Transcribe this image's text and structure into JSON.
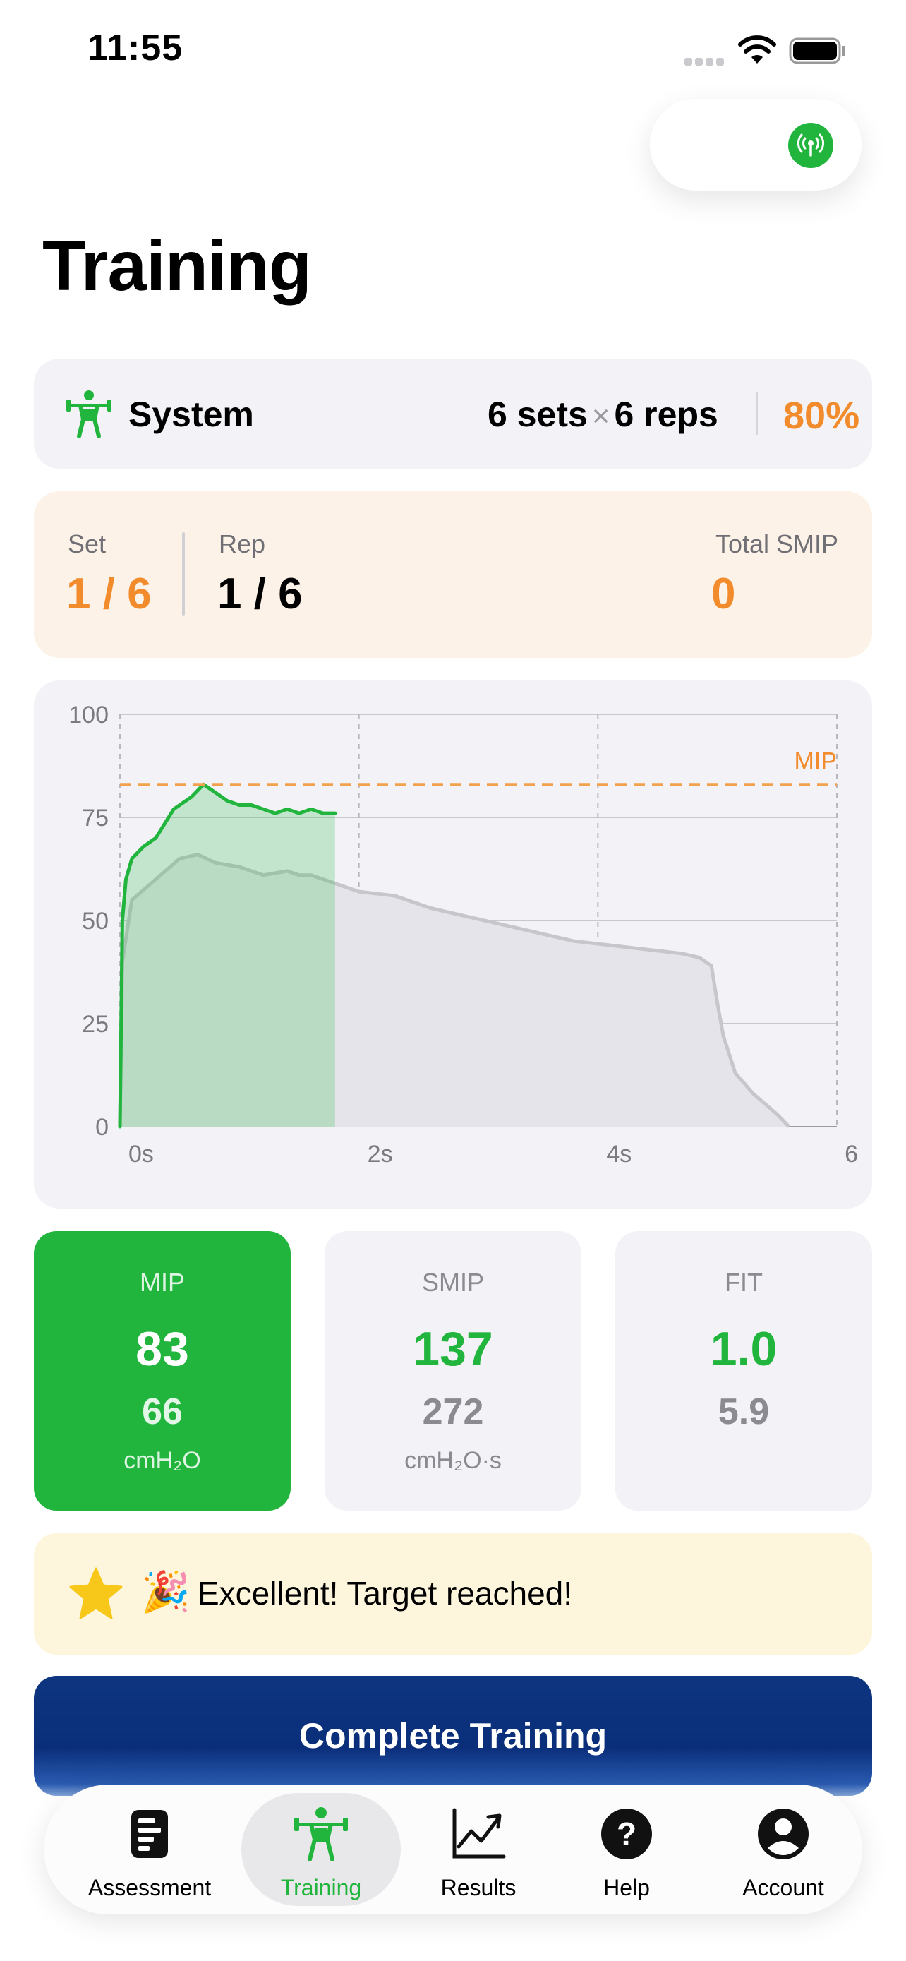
{
  "status_bar": {
    "time": "11:55"
  },
  "header": {
    "title": "Training"
  },
  "program": {
    "name": "System",
    "sets": "6 sets",
    "times": "×",
    "reps": "6 reps",
    "intensity": "80%"
  },
  "progress": {
    "set_label": "Set",
    "set_value": "1 / 6",
    "rep_label": "Rep",
    "rep_value": "1 / 6",
    "total_label": "Total SMIP",
    "total_value": "0"
  },
  "chart_data": {
    "type": "line",
    "ylim": [
      0,
      100
    ],
    "xlim": [
      0,
      6
    ],
    "y_ticks": [
      "0",
      "25",
      "50",
      "75",
      "100"
    ],
    "x_ticks": [
      "0s",
      "2s",
      "4s",
      "6"
    ],
    "target_label": "MIP",
    "target_value": 83,
    "series": [
      {
        "x": [
          0,
          0.02,
          0.1,
          0.3,
          0.5,
          0.65,
          0.8,
          1.0,
          1.2,
          1.4,
          1.5,
          1.6,
          1.7,
          1.8,
          2.0,
          2.3,
          2.6,
          2.9,
          3.2,
          3.5,
          3.8,
          4.1,
          4.4,
          4.7,
          4.85,
          4.95,
          5.0,
          5.05,
          5.15,
          5.3,
          5.5,
          5.6
        ],
        "y": [
          0,
          40,
          55,
          60,
          65,
          66,
          64,
          63,
          61,
          62,
          61,
          61,
          60,
          59,
          57,
          56,
          53,
          51,
          49,
          47,
          45,
          44,
          43,
          42,
          41,
          39,
          30,
          22,
          13,
          8,
          3,
          0
        ]
      },
      {
        "x": [
          0,
          0.02,
          0.05,
          0.1,
          0.2,
          0.3,
          0.45,
          0.6,
          0.7,
          0.8,
          0.9,
          1.0,
          1.1,
          1.2,
          1.3,
          1.4,
          1.5,
          1.6,
          1.7,
          1.8
        ],
        "y": [
          0,
          50,
          60,
          65,
          68,
          70,
          77,
          80,
          83,
          81,
          79,
          78,
          78,
          77,
          76,
          77,
          76,
          77,
          76,
          76
        ]
      }
    ]
  },
  "metrics": [
    {
      "title": "MIP",
      "main": "83",
      "sub": "66",
      "unit": "cmH₂O"
    },
    {
      "title": "SMIP",
      "main": "137",
      "sub": "272",
      "unit": "cmH₂O·s"
    },
    {
      "title": "FIT",
      "main": "1.0",
      "sub": "5.9",
      "unit": ""
    }
  ],
  "banner": {
    "emoji": "🎉",
    "text": "Excellent! Target reached!"
  },
  "complete_button": {
    "label": "Complete Training"
  },
  "tabs": [
    {
      "label": "Assessment",
      "icon": "assessment-icon"
    },
    {
      "label": "Training",
      "icon": "training-icon"
    },
    {
      "label": "Results",
      "icon": "results-icon"
    },
    {
      "label": "Help",
      "icon": "help-icon"
    },
    {
      "label": "Account",
      "icon": "account-icon"
    }
  ],
  "colors": {
    "accent_green": "#21b53d",
    "accent_orange": "#f28b2c",
    "button_blue": "#0e3580"
  }
}
